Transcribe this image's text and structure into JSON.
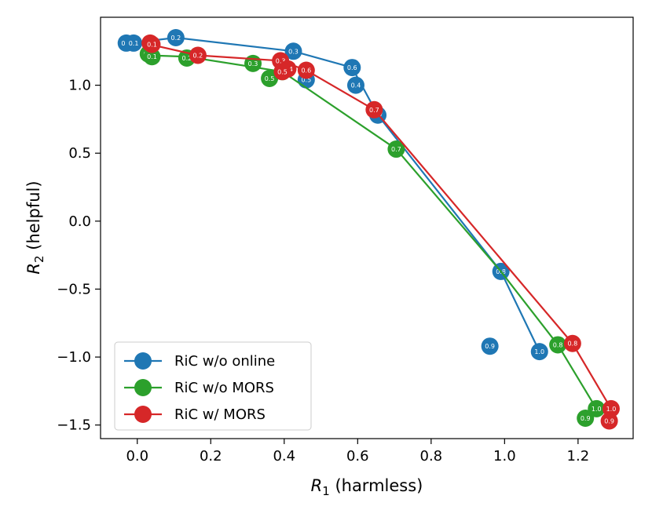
{
  "chart_data": {
    "type": "line",
    "xlabel": {
      "main": "R",
      "sub": "1",
      "rest": " (harmless)"
    },
    "ylabel": {
      "main": "R",
      "sub": "2",
      "rest": " (helpful)"
    },
    "xlim": [
      -0.1,
      1.35
    ],
    "ylim": [
      -1.6,
      1.5
    ],
    "xticks": [
      0.0,
      0.2,
      0.4,
      0.6,
      0.8,
      1.0,
      1.2
    ],
    "xtick_labels": [
      "0.0",
      "0.2",
      "0.4",
      "0.6",
      "0.8",
      "1.0",
      "1.2"
    ],
    "yticks": [
      -1.5,
      -1.0,
      -0.5,
      0.0,
      0.5,
      1.0
    ],
    "ytick_labels": [
      "−1.5",
      "−1.0",
      "−0.5",
      "0.0",
      "0.5",
      "1.0"
    ],
    "legend_position": "lower-left",
    "series": [
      {
        "name": "RiC w/o online",
        "color": "#1f77b4",
        "line_points": [
          [
            -0.02,
            1.31
          ],
          [
            0.105,
            1.35
          ],
          [
            0.425,
            1.25
          ],
          [
            0.585,
            1.13
          ],
          [
            0.655,
            0.78
          ],
          [
            0.99,
            -0.37
          ],
          [
            1.095,
            -0.96
          ]
        ],
        "points": [
          {
            "x": -0.03,
            "y": 1.31,
            "label": "0.0"
          },
          {
            "x": -0.01,
            "y": 1.31,
            "label": "0.1"
          },
          {
            "x": 0.105,
            "y": 1.35,
            "label": "0.2"
          },
          {
            "x": 0.425,
            "y": 1.25,
            "label": "0.3"
          },
          {
            "x": 0.595,
            "y": 1.0,
            "label": "0.4"
          },
          {
            "x": 0.46,
            "y": 1.04,
            "label": "0.5"
          },
          {
            "x": 0.585,
            "y": 1.13,
            "label": "0.6"
          },
          {
            "x": 0.655,
            "y": 0.78,
            "label": "0.7"
          },
          {
            "x": 0.99,
            "y": -0.37,
            "label": "0.8"
          },
          {
            "x": 0.96,
            "y": -0.92,
            "label": "0.9"
          },
          {
            "x": 1.095,
            "y": -0.96,
            "label": "1.0"
          }
        ]
      },
      {
        "name": "RiC w/o MORS",
        "color": "#2ca02c",
        "line_points": [
          [
            0.03,
            1.22
          ],
          [
            0.135,
            1.21
          ],
          [
            0.395,
            1.1
          ],
          [
            0.705,
            0.53
          ],
          [
            0.99,
            -0.37
          ],
          [
            1.145,
            -0.91
          ],
          [
            1.25,
            -1.38
          ]
        ],
        "points": [
          {
            "x": 0.03,
            "y": 1.23,
            "label": "0.0"
          },
          {
            "x": 0.04,
            "y": 1.21,
            "label": "0.1"
          },
          {
            "x": 0.135,
            "y": 1.2,
            "label": "0.2"
          },
          {
            "x": 0.315,
            "y": 1.16,
            "label": "0.3"
          },
          {
            "x": 0.4,
            "y": 1.11,
            "label": "0.4"
          },
          {
            "x": 0.36,
            "y": 1.05,
            "label": "0.5"
          },
          {
            "x": 0.395,
            "y": 1.1,
            "label": "0.6"
          },
          {
            "x": 0.705,
            "y": 0.53,
            "label": "0.7"
          },
          {
            "x": 1.145,
            "y": -0.91,
            "label": "0.8"
          },
          {
            "x": 1.22,
            "y": -1.45,
            "label": "0.9"
          },
          {
            "x": 1.25,
            "y": -1.38,
            "label": "1.0"
          }
        ]
      },
      {
        "name": "RiC w/ MORS",
        "color": "#d62728",
        "line_points": [
          [
            0.035,
            1.3
          ],
          [
            0.165,
            1.22
          ],
          [
            0.39,
            1.18
          ],
          [
            0.46,
            1.11
          ],
          [
            0.645,
            0.82
          ],
          [
            1.185,
            -0.9
          ],
          [
            1.29,
            -1.38
          ]
        ],
        "points": [
          {
            "x": 0.035,
            "y": 1.31,
            "label": "0.0"
          },
          {
            "x": 0.04,
            "y": 1.3,
            "label": "0.1"
          },
          {
            "x": 0.165,
            "y": 1.22,
            "label": "0.2"
          },
          {
            "x": 0.39,
            "y": 1.18,
            "label": "0.3"
          },
          {
            "x": 0.41,
            "y": 1.12,
            "label": "0.4"
          },
          {
            "x": 0.395,
            "y": 1.1,
            "label": "0.5"
          },
          {
            "x": 0.46,
            "y": 1.11,
            "label": "0.6"
          },
          {
            "x": 0.645,
            "y": 0.82,
            "label": "0.7"
          },
          {
            "x": 1.185,
            "y": -0.9,
            "label": "0.8"
          },
          {
            "x": 1.285,
            "y": -1.47,
            "label": "0.9"
          },
          {
            "x": 1.29,
            "y": -1.38,
            "label": "1.0"
          }
        ]
      }
    ]
  }
}
